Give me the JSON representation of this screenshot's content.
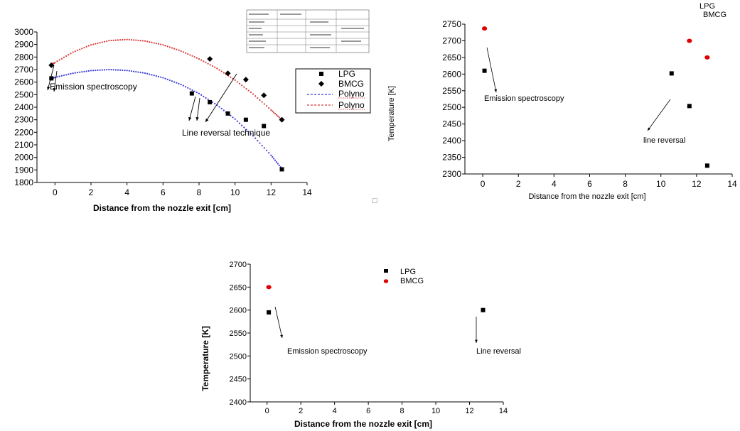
{
  "chart_data": [
    {
      "type": "scatter",
      "title": "",
      "xlabel": "Distance from the nozzle exit [cm]",
      "ylabel": "",
      "xlim": [
        -1,
        14
      ],
      "ylim": [
        1800,
        3000
      ],
      "x_ticks": [
        "0",
        "2",
        "4",
        "6",
        "8",
        "10",
        "12",
        "14"
      ],
      "y_ticks": [
        "1800",
        "1900",
        "2000",
        "2100",
        "2200",
        "2300",
        "2400",
        "2500",
        "2600",
        "2700",
        "2800",
        "2900",
        "3000"
      ],
      "legend_position": "right",
      "series": [
        {
          "name": "LPG",
          "marker": "square",
          "color": "#000000",
          "x": [
            -0.2,
            7.6,
            8.6,
            9.6,
            10.6,
            11.6,
            12.6
          ],
          "y": [
            2630,
            2510,
            2440,
            2350,
            2300,
            2250,
            1905
          ]
        },
        {
          "name": "BMCG",
          "marker": "diamond",
          "color": "#000000",
          "x": [
            -0.2,
            8.6,
            9.6,
            10.6,
            11.6,
            12.6
          ],
          "y": [
            2735,
            2785,
            2670,
            2620,
            2495,
            2300
          ]
        },
        {
          "name": "Polyno",
          "type": "line",
          "color": "#3a3ad8",
          "x": [
            -0.2,
            0,
            1,
            2,
            3,
            4,
            5,
            6,
            7,
            8,
            9,
            10,
            11,
            12,
            12.6
          ],
          "y": [
            2628,
            2638,
            2671,
            2692,
            2700,
            2693,
            2672,
            2635,
            2581,
            2509,
            2417,
            2305,
            2172,
            2017,
            1910
          ]
        },
        {
          "name": "Polyno",
          "type": "line",
          "color": "#d83a3a",
          "x": [
            -0.2,
            0,
            1,
            2,
            3,
            4,
            5,
            6,
            7,
            8,
            9,
            10,
            11,
            12,
            12.6
          ],
          "y": [
            2740,
            2756,
            2839,
            2897,
            2931,
            2940,
            2928,
            2897,
            2848,
            2785,
            2709,
            2616,
            2505,
            2378,
            2300
          ]
        }
      ],
      "annotations": [
        "Emission spectroscopy",
        "Line reversal technique"
      ]
    },
    {
      "type": "scatter",
      "title": "",
      "xlabel": "Distance from the  nozzle exit [cm]",
      "ylabel": "Temperature [K]",
      "xlim": [
        -1,
        14
      ],
      "ylim": [
        2300,
        2750
      ],
      "x_ticks": [
        "0",
        "2",
        "4",
        "6",
        "8",
        "10",
        "12",
        "14"
      ],
      "y_ticks": [
        "2300",
        "2350",
        "2400",
        "2450",
        "2500",
        "2550",
        "2600",
        "2650",
        "2700",
        "2750"
      ],
      "legend_position": "top-right",
      "series": [
        {
          "name": "LPG",
          "marker": "square",
          "color": "#000000",
          "x": [
            0.1,
            10.6,
            11.6,
            12.6
          ],
          "y": [
            2610,
            2602,
            2504,
            2325
          ]
        },
        {
          "name": "BMCG",
          "marker": "circle",
          "color": "#e00000",
          "x": [
            0.1,
            11.6,
            12.6
          ],
          "y": [
            2737,
            2700,
            2650
          ]
        }
      ],
      "annotations": [
        "Emission spectroscopy",
        "line reversal"
      ]
    },
    {
      "type": "scatter",
      "title": "",
      "xlabel": "Distance from the nozzle exit [cm]",
      "ylabel": "Temperature [K]",
      "xlim": [
        -1,
        14
      ],
      "ylim": [
        2400,
        2700
      ],
      "x_ticks": [
        "0",
        "2",
        "4",
        "6",
        "8",
        "10",
        "12",
        "14"
      ],
      "y_ticks": [
        "2400",
        "2450",
        "2500",
        "2550",
        "2600",
        "2650",
        "2700"
      ],
      "legend_position": "top-center",
      "series": [
        {
          "name": "LPG",
          "marker": "square",
          "color": "#000000",
          "x": [
            0.1,
            12.8
          ],
          "y": [
            2595,
            2600
          ]
        },
        {
          "name": "BMCG",
          "marker": "circle",
          "color": "#e00000",
          "x": [
            0.1
          ],
          "y": [
            2650
          ]
        }
      ],
      "annotations": [
        "Emission spectroscopy",
        "Line reversal"
      ]
    }
  ],
  "colors": {
    "lpg": "#000000",
    "bmcg_red": "#e00000",
    "fit_blue": "#3a3ad8",
    "fit_red": "#d83a3a"
  },
  "extra": {
    "small_square_glyph": "□"
  }
}
